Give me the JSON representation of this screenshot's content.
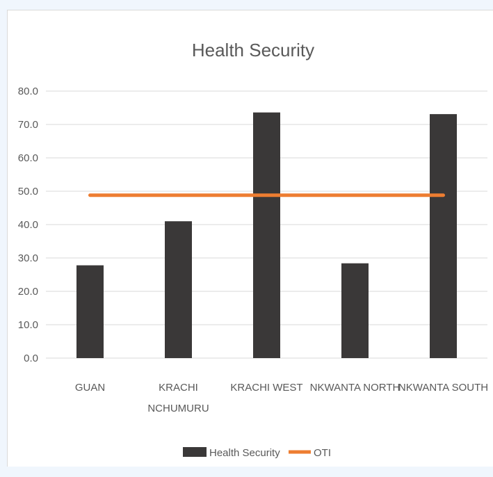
{
  "chart_data": {
    "type": "bar",
    "title": "Health Security",
    "categories": [
      [
        "GUAN"
      ],
      [
        "KRACHI",
        "NCHUMURU"
      ],
      [
        "KRACHI WEST"
      ],
      [
        "NKWANTA NORTH"
      ],
      [
        "NKWANTA SOUTH"
      ]
    ],
    "series": [
      {
        "name": "Health Security",
        "type": "bar",
        "color": "#3a3838",
        "values": [
          27.8,
          41.0,
          73.6,
          28.4,
          73.1
        ]
      },
      {
        "name": "OTI",
        "type": "line",
        "color": "#ed7d31",
        "values": [
          48.8,
          48.8,
          48.8,
          48.8,
          48.8
        ]
      }
    ],
    "ylim": [
      0,
      80
    ],
    "yticks": [
      "0.0",
      "10.0",
      "20.0",
      "30.0",
      "40.0",
      "50.0",
      "60.0",
      "70.0",
      "80.0"
    ],
    "grid": true,
    "legend_position": "bottom",
    "colors": {
      "gridline": "#d9d9d9",
      "axis_text": "#595959"
    }
  }
}
